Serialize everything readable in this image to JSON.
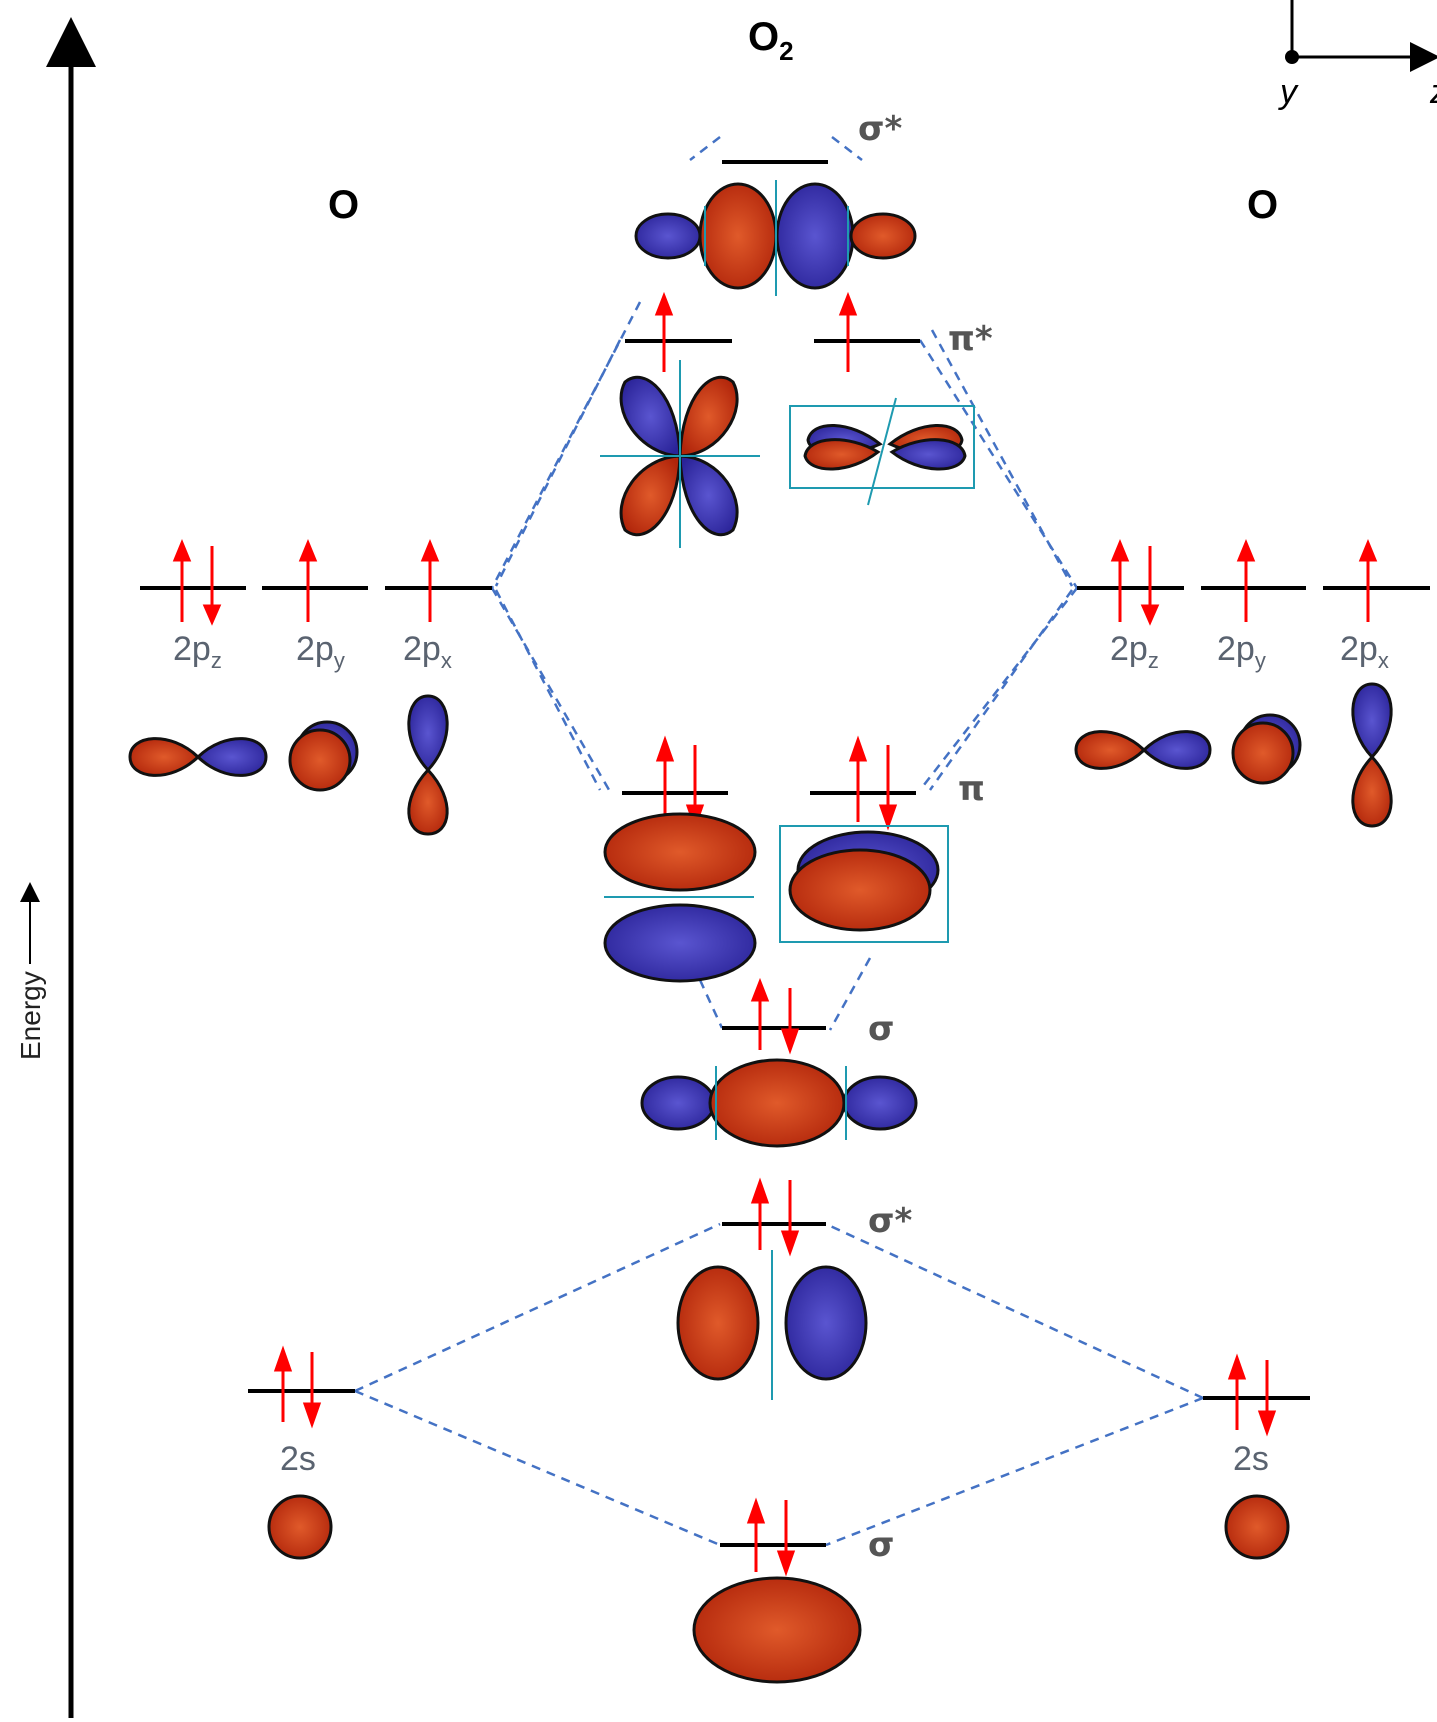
{
  "molecule_label": {
    "main": "O",
    "sub": "2"
  },
  "atom_left": "O",
  "atom_right": "O",
  "energy_label": "Energy",
  "axes": {
    "y": "y",
    "z": "z"
  },
  "atomic_orbitals": {
    "p_z": {
      "main": "2p",
      "sub": "z"
    },
    "p_y": {
      "main": "2p",
      "sub": "y"
    },
    "p_x": {
      "main": "2p",
      "sub": "x"
    },
    "s": "2s"
  },
  "mo_labels": {
    "sigma_star_2p": "σ*",
    "pi_star_2p": "π*",
    "pi_2p": "π",
    "sigma_2p": "σ",
    "sigma_star_2s": "σ*",
    "sigma_2s": "σ"
  },
  "electron_config": {
    "atomic_2p": {
      "p_z": 2,
      "p_y": 1,
      "p_x": 1
    },
    "atomic_2s": 2,
    "sigma_star_2p": 0,
    "pi_star_2p": [
      1,
      1
    ],
    "pi_2p": [
      2,
      2
    ],
    "sigma_2p": 2,
    "sigma_star_2s": 2,
    "sigma_2s": 2
  },
  "colors": {
    "lobe_red": "#c1300c",
    "lobe_blue": "#3a2fb0",
    "electron_arrow": "#ff0000",
    "correlation_line": "#4472c4",
    "node_line": "#1e9ab0",
    "label_gray": "#555555"
  }
}
